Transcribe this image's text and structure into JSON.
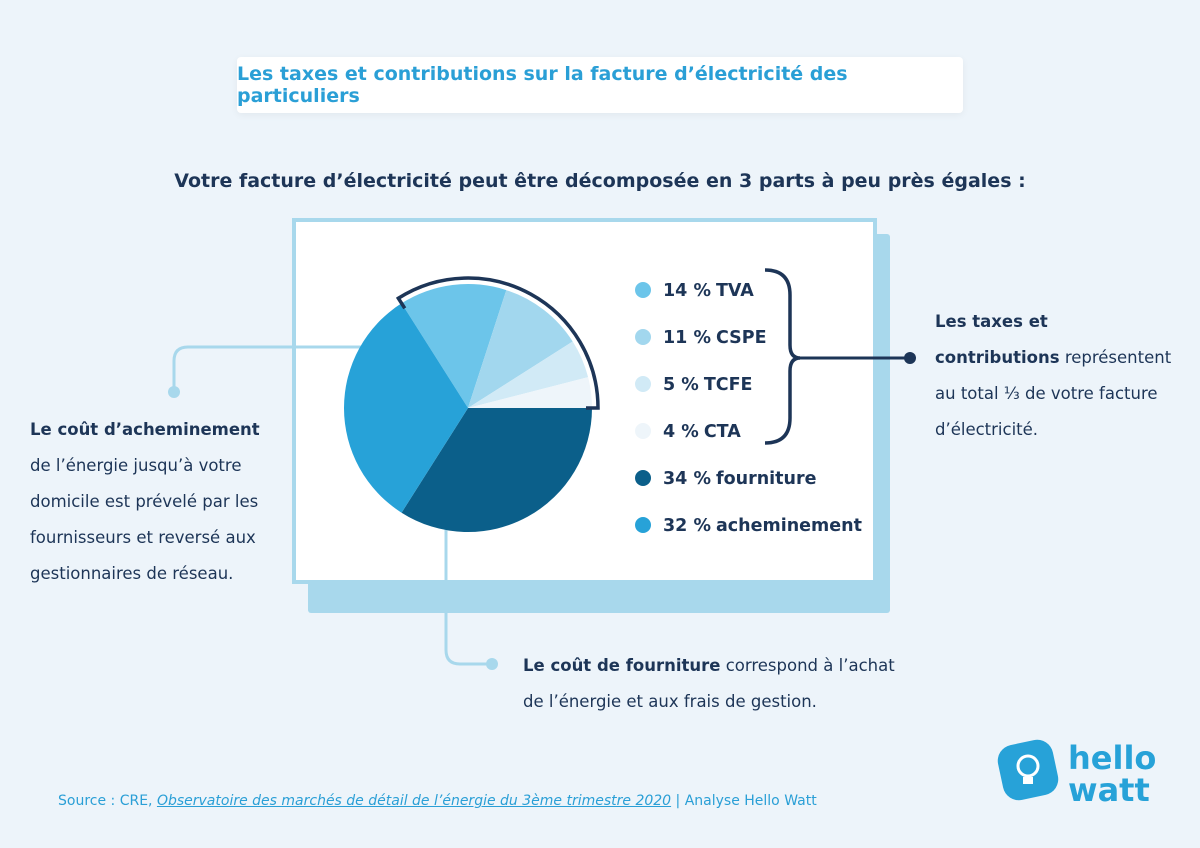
{
  "header": {
    "title": "Les taxes et contributions sur la facture d’électricité des particuliers"
  },
  "subtitle": "Votre facture d’électricité peut être décomposée en 3 parts à peu près égales :",
  "chart_data": {
    "type": "pie",
    "categories": [
      "TVA",
      "CSPE",
      "TCFE",
      "CTA",
      "fourniture",
      "acheminement"
    ],
    "values": [
      14,
      11,
      5,
      4,
      34,
      32
    ],
    "value_labels": [
      "14 %",
      "11 %",
      "5 %",
      "4 %",
      "34 %",
      "32 %"
    ],
    "colors": [
      "#6cc5ea",
      "#a2d7ee",
      "#d1eaf6",
      "#eef5fa",
      "#0b5f8a",
      "#27a2d8"
    ]
  },
  "annotations": {
    "taxes": {
      "bold": "Les taxes et contributions",
      "text": "représentent au total ⅓ de votre facture d’électricité."
    },
    "acheminement": {
      "bold": "Le coût d’acheminement",
      "text": "de l’énergie jusqu’à votre domicile est prévelé par les fournisseurs et reversé aux gestionnaires de réseau."
    },
    "fourniture": {
      "bold": "Le coût de fourniture",
      "text": "correspond à l’achat de l’énergie et aux frais de gestion."
    }
  },
  "source": {
    "prefix": "Source : CRE,",
    "link": "Observatoire des marchés de détail de l’énergie du 3ème trimestre 2020",
    "suffix": "| Analyse Hello Watt"
  },
  "logo": {
    "line1": "hello",
    "line2": "watt"
  }
}
